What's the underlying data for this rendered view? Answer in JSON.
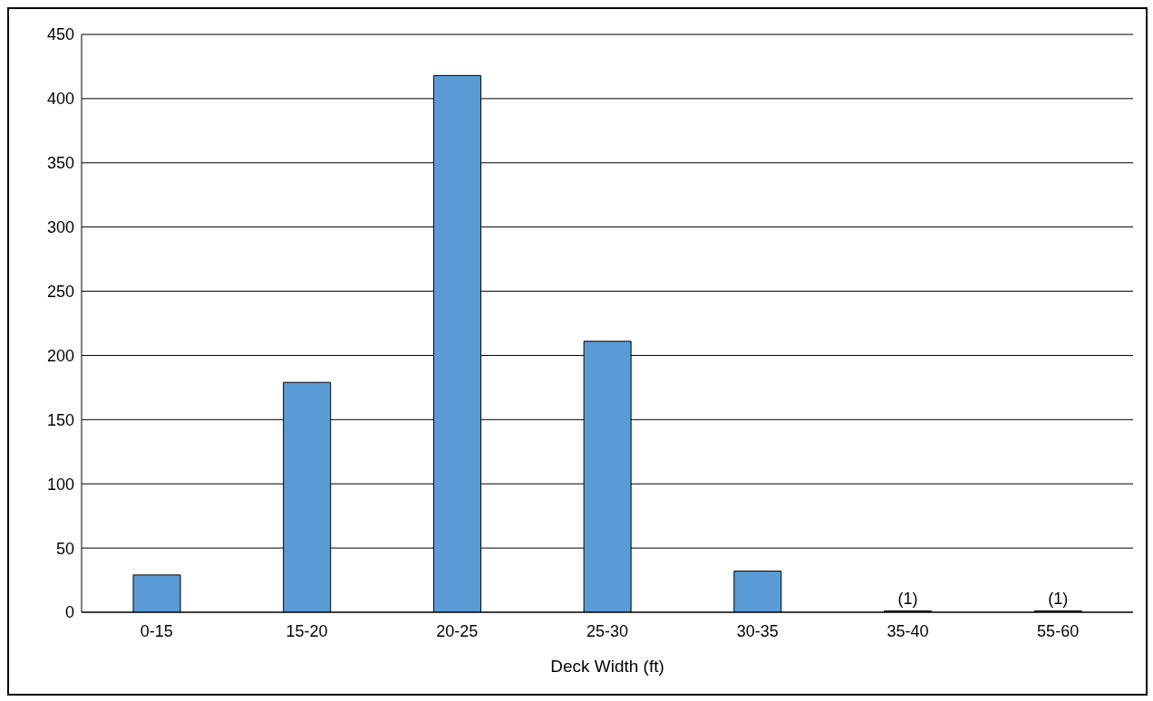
{
  "chart_data": {
    "type": "bar",
    "xlabel": "Deck Width (ft)",
    "categories": [
      "0-15",
      "15-20",
      "20-25",
      "25-30",
      "30-35",
      "35-40",
      "55-60"
    ],
    "values": [
      29,
      179,
      418,
      211,
      32,
      1,
      1
    ],
    "value_labels": [
      null,
      null,
      null,
      null,
      null,
      "(1)",
      "(1)"
    ],
    "color": "#5b9bd5",
    "ylim": [
      0,
      450
    ],
    "yticks": [
      0,
      50,
      100,
      150,
      200,
      250,
      300,
      350,
      400,
      450
    ],
    "grid": "y"
  }
}
